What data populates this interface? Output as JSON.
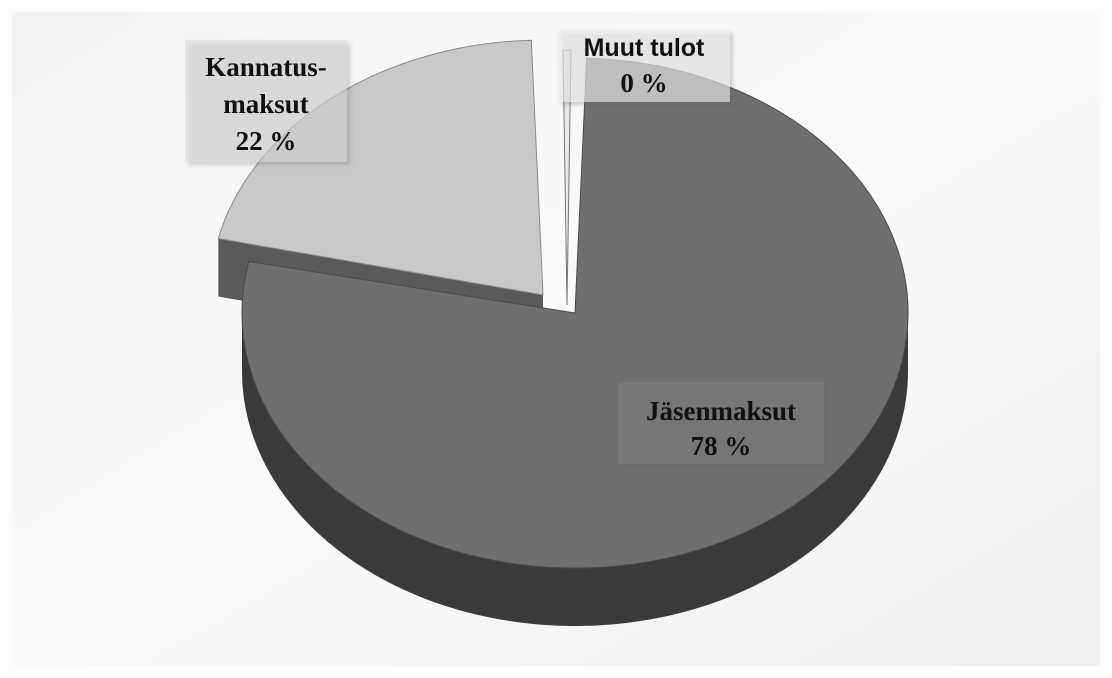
{
  "chart_data": {
    "type": "pie",
    "three_d": true,
    "slices": [
      {
        "label": "Jäsenmaksut",
        "value": 78,
        "value_label": "78 %",
        "color": "#6f6f6f"
      },
      {
        "label": "Kannatus-maksut",
        "label_lines": [
          "Kannatus-",
          "maksut"
        ],
        "value": 22,
        "value_label": "22 %",
        "color": "#c9c9c9"
      },
      {
        "label": "Muut tulot",
        "value": 0,
        "value_label": "0 %",
        "color": "#e9e9e9"
      }
    ],
    "colors": {
      "background": "#fdfdfd",
      "jasen_top": "#6f6f6f",
      "jasen_side": "#3a3a3a",
      "kannatus_top": "#c9c9c9",
      "kannatus_side": "#5a5a5a",
      "label_box": "#d9d9d9"
    }
  }
}
